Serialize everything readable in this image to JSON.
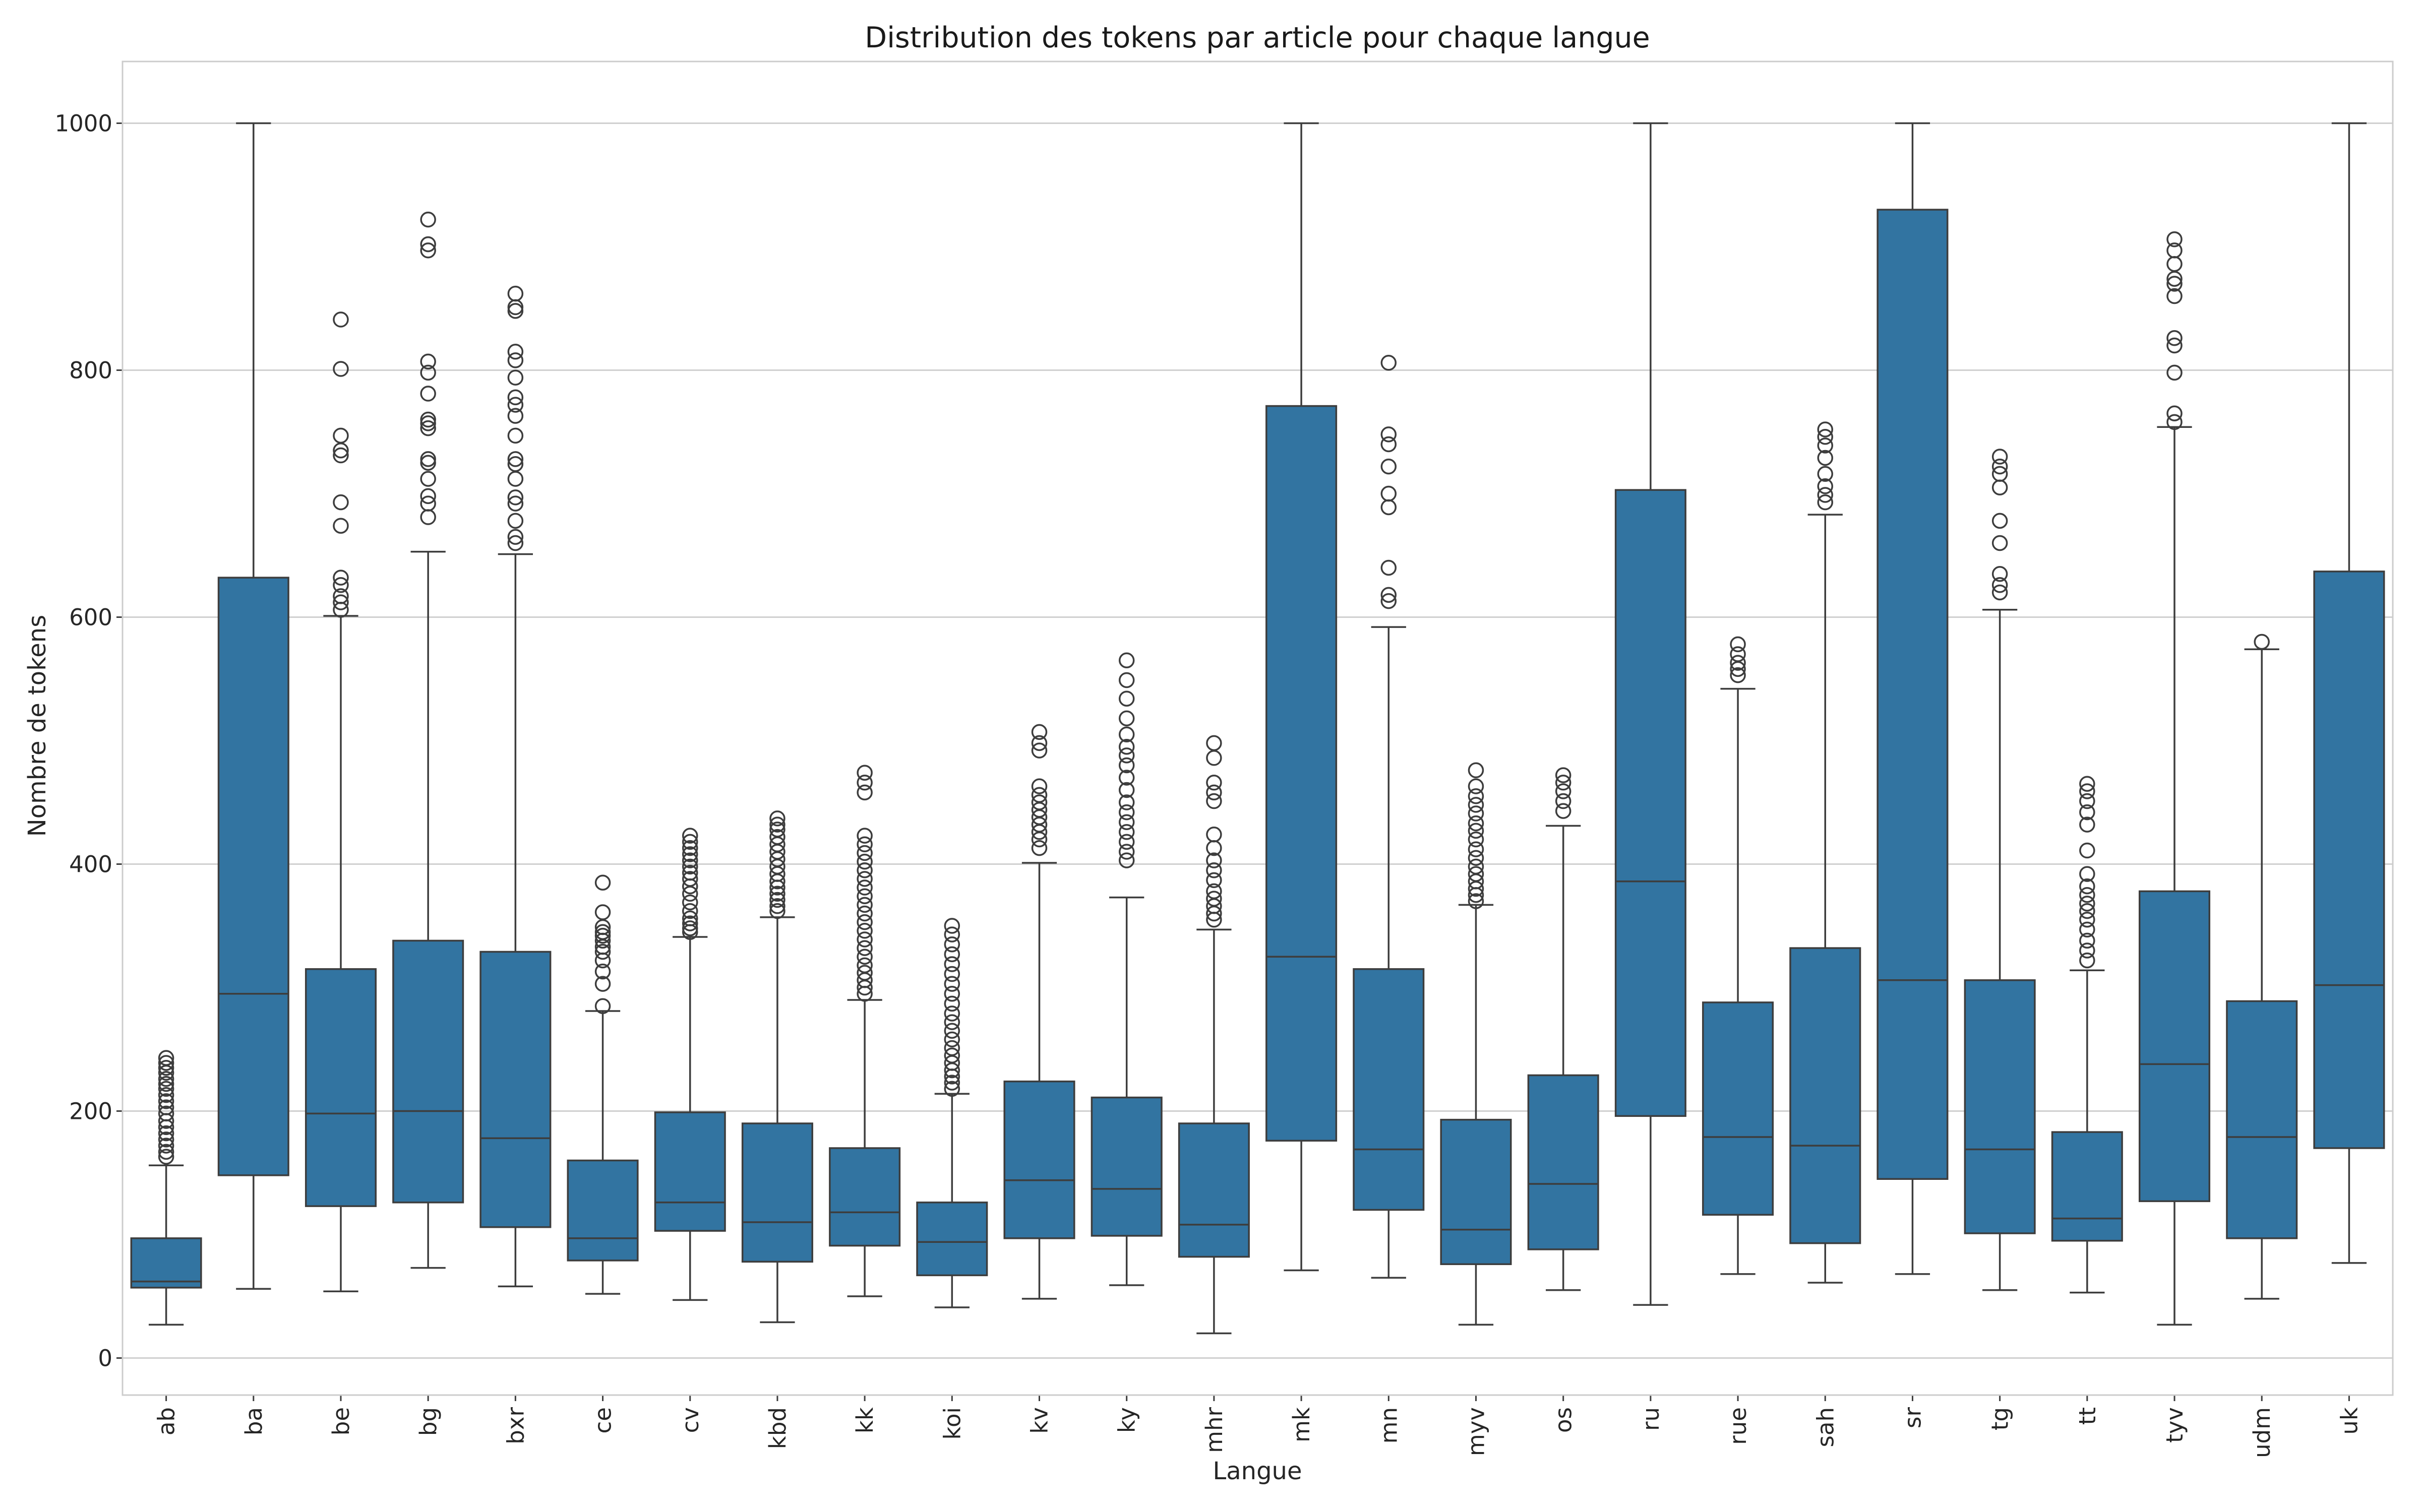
{
  "chart_data": {
    "type": "box",
    "title": "Distribution des tokens par article pour chaque langue",
    "xlabel": "Langue",
    "ylabel": "Nombre de tokens",
    "ylim": [
      -30,
      1050
    ],
    "yticks": [
      0,
      200,
      400,
      600,
      800,
      1000
    ],
    "grid": "horizontal",
    "colors": {
      "box": "#3274a1",
      "line": "#3d3d3d",
      "grid": "#d0d0d0"
    },
    "categories": [
      "ab",
      "ba",
      "be",
      "bg",
      "bxr",
      "ce",
      "cv",
      "kbd",
      "kk",
      "koi",
      "kv",
      "ky",
      "mhr",
      "mk",
      "mn",
      "myv",
      "os",
      "ru",
      "rue",
      "sah",
      "sr",
      "tg",
      "tt",
      "tyv",
      "udm",
      "uk"
    ],
    "boxes": [
      {
        "label": "ab",
        "whislo": 27,
        "q1": 57,
        "med": 62,
        "q3": 97,
        "whishi": 156,
        "fliers": [
          163,
          167,
          172,
          177,
          182,
          187,
          192,
          198,
          203,
          208,
          213,
          218,
          222,
          226,
          231,
          235,
          239,
          243
        ]
      },
      {
        "label": "ba",
        "whislo": 56,
        "q1": 148,
        "med": 295,
        "q3": 632,
        "whishi": 1000,
        "fliers": []
      },
      {
        "label": "be",
        "whislo": 54,
        "q1": 123,
        "med": 198,
        "q3": 315,
        "whishi": 601,
        "fliers": [
          606,
          612,
          617,
          626,
          632,
          674,
          693,
          731,
          735,
          747,
          801,
          841
        ]
      },
      {
        "label": "bg",
        "whislo": 73,
        "q1": 126,
        "med": 200,
        "q3": 338,
        "whishi": 653,
        "fliers": [
          681,
          692,
          698,
          712,
          725,
          728,
          753,
          757,
          760,
          781,
          798,
          807,
          897,
          902,
          922
        ]
      },
      {
        "label": "bxr",
        "whislo": 58,
        "q1": 106,
        "med": 178,
        "q3": 329,
        "whishi": 651,
        "fliers": [
          660,
          665,
          678,
          692,
          697,
          712,
          724,
          728,
          747,
          763,
          772,
          778,
          794,
          808,
          815,
          848,
          851,
          862
        ]
      },
      {
        "label": "ce",
        "whislo": 52,
        "q1": 79,
        "med": 97,
        "q3": 160,
        "whishi": 281,
        "fliers": [
          285,
          303,
          313,
          322,
          329,
          333,
          338,
          342,
          345,
          349,
          361,
          385
        ]
      },
      {
        "label": "cv",
        "whislo": 47,
        "q1": 103,
        "med": 126,
        "q3": 199,
        "whishi": 341,
        "fliers": [
          345,
          348,
          352,
          356,
          362,
          369,
          376,
          382,
          388,
          393,
          398,
          403,
          408,
          413,
          418,
          423
        ]
      },
      {
        "label": "kbd",
        "whislo": 29,
        "q1": 78,
        "med": 110,
        "q3": 190,
        "whishi": 357,
        "fliers": [
          362,
          366,
          371,
          376,
          381,
          386,
          392,
          398,
          404,
          410,
          416,
          422,
          428,
          432,
          437
        ]
      },
      {
        "label": "kk",
        "whislo": 50,
        "q1": 91,
        "med": 118,
        "q3": 170,
        "whishi": 290,
        "fliers": [
          295,
          300,
          306,
          312,
          318,
          325,
          332,
          339,
          346,
          353,
          360,
          367,
          374,
          381,
          388,
          395,
          402,
          409,
          416,
          423,
          458,
          466,
          474
        ]
      },
      {
        "label": "koi",
        "whislo": 41,
        "q1": 67,
        "med": 94,
        "q3": 126,
        "whishi": 214,
        "fliers": [
          218,
          223,
          228,
          233,
          239,
          245,
          251,
          258,
          265,
          272,
          279,
          287,
          295,
          303,
          311,
          319,
          327,
          335,
          343,
          350
        ]
      },
      {
        "label": "kv",
        "whislo": 48,
        "q1": 97,
        "med": 144,
        "q3": 224,
        "whishi": 401,
        "fliers": [
          413,
          420,
          426,
          432,
          438,
          444,
          450,
          456,
          463,
          492,
          498,
          507
        ]
      },
      {
        "label": "ky",
        "whislo": 59,
        "q1": 99,
        "med": 137,
        "q3": 211,
        "whishi": 373,
        "fliers": [
          403,
          410,
          418,
          426,
          434,
          442,
          450,
          460,
          470,
          480,
          488,
          495,
          505,
          518,
          534,
          549,
          565
        ]
      },
      {
        "label": "mhr",
        "whislo": 20,
        "q1": 82,
        "med": 108,
        "q3": 190,
        "whishi": 347,
        "fliers": [
          355,
          360,
          366,
          372,
          378,
          387,
          395,
          403,
          413,
          424,
          451,
          458,
          466,
          486,
          498
        ]
      },
      {
        "label": "mk",
        "whislo": 71,
        "q1": 176,
        "med": 325,
        "q3": 771,
        "whishi": 1000,
        "fliers": []
      },
      {
        "label": "mn",
        "whislo": 65,
        "q1": 120,
        "med": 169,
        "q3": 315,
        "whishi": 592,
        "fliers": [
          613,
          618,
          640,
          689,
          700,
          722,
          740,
          748,
          806
        ]
      },
      {
        "label": "myv",
        "whislo": 27,
        "q1": 76,
        "med": 104,
        "q3": 193,
        "whishi": 367,
        "fliers": [
          370,
          375,
          380,
          386,
          392,
          398,
          405,
          412,
          420,
          427,
          433,
          441,
          448,
          455,
          463,
          476
        ]
      },
      {
        "label": "os",
        "whislo": 55,
        "q1": 88,
        "med": 141,
        "q3": 229,
        "whishi": 431,
        "fliers": [
          443,
          451,
          459,
          466,
          472
        ]
      },
      {
        "label": "ru",
        "whislo": 43,
        "q1": 196,
        "med": 386,
        "q3": 703,
        "whishi": 1000,
        "fliers": []
      },
      {
        "label": "rue",
        "whislo": 68,
        "q1": 116,
        "med": 179,
        "q3": 288,
        "whishi": 542,
        "fliers": [
          553,
          558,
          563,
          570,
          578
        ]
      },
      {
        "label": "sah",
        "whislo": 61,
        "q1": 93,
        "med": 172,
        "q3": 332,
        "whishi": 683,
        "fliers": [
          693,
          699,
          706,
          716,
          729,
          739,
          746,
          752
        ]
      },
      {
        "label": "sr",
        "whislo": 68,
        "q1": 145,
        "med": 306,
        "q3": 930,
        "whishi": 1000,
        "fliers": []
      },
      {
        "label": "tg",
        "whislo": 55,
        "q1": 101,
        "med": 169,
        "q3": 306,
        "whishi": 606,
        "fliers": [
          620,
          626,
          635,
          660,
          678,
          705,
          716,
          722,
          730
        ]
      },
      {
        "label": "tt",
        "whislo": 53,
        "q1": 95,
        "med": 113,
        "q3": 183,
        "whishi": 314,
        "fliers": [
          322,
          330,
          338,
          347,
          355,
          362,
          368,
          375,
          382,
          392,
          411,
          432,
          442,
          451,
          459,
          465
        ]
      },
      {
        "label": "tyv",
        "whislo": 27,
        "q1": 127,
        "med": 238,
        "q3": 378,
        "whishi": 754,
        "fliers": [
          758,
          765,
          798,
          820,
          826,
          860,
          870,
          874,
          886,
          897,
          906
        ]
      },
      {
        "label": "udm",
        "whislo": 48,
        "q1": 97,
        "med": 179,
        "q3": 289,
        "whishi": 574,
        "fliers": [
          580
        ]
      },
      {
        "label": "uk",
        "whislo": 77,
        "q1": 170,
        "med": 302,
        "q3": 637,
        "whishi": 1000,
        "fliers": []
      }
    ]
  }
}
